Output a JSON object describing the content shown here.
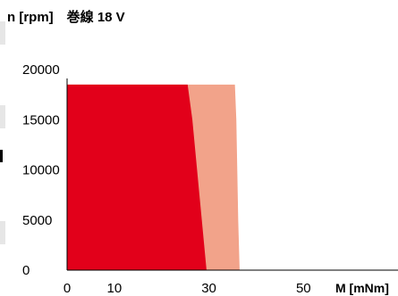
{
  "chart_data": {
    "type": "area",
    "title": "n [rpm]　巻線  18 V",
    "xlabel": "M [mNm]",
    "ylabel": "n [rpm]",
    "xlim": [
      0,
      70
    ],
    "ylim": [
      0,
      20000
    ],
    "x_ticks": [
      0,
      10,
      30,
      50
    ],
    "y_ticks": [
      0,
      5000,
      10000,
      15000,
      20000
    ],
    "grid": false,
    "series": [
      {
        "region": "continuous",
        "color": "#e2001a",
        "boundary": [
          [
            0,
            18500
          ],
          [
            25.5,
            18500
          ],
          [
            26.5,
            15000
          ],
          [
            27.5,
            10000
          ],
          [
            28.5,
            5000
          ],
          [
            29.5,
            0
          ]
        ]
      },
      {
        "region": "intermittent",
        "color": "#f2a38a",
        "boundary": [
          [
            0,
            18500
          ],
          [
            35.5,
            18500
          ],
          [
            35.8,
            15000
          ],
          [
            36.0,
            10000
          ],
          [
            36.2,
            5000
          ],
          [
            36.5,
            0
          ]
        ]
      }
    ]
  }
}
